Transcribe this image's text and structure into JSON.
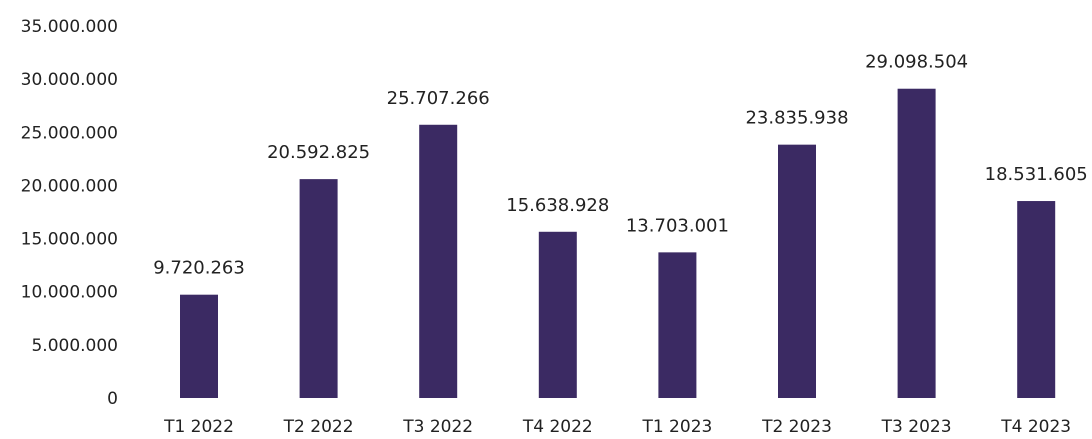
{
  "chart_data": {
    "type": "bar",
    "title": "",
    "xlabel": "",
    "ylabel": "",
    "categories": [
      "T1 2022",
      "T2 2022",
      "T3 2022",
      "T4 2022",
      "T1 2023",
      "T2 2023",
      "T3 2023",
      "T4 2023"
    ],
    "values": [
      9720263,
      20592825,
      25707266,
      15638928,
      13703001,
      23835938,
      29098504,
      18531605
    ],
    "value_labels": [
      "9.720.263",
      "20.592.825",
      "25.707.266",
      "15.638.928",
      "13.703.001",
      "23.835.938",
      "29.098.504",
      "18.531.605"
    ],
    "ylim": [
      0,
      35000000
    ],
    "y_ticks": [
      0,
      5000000,
      10000000,
      15000000,
      20000000,
      25000000,
      30000000,
      35000000
    ],
    "y_tick_labels": [
      "0",
      "5.000.000",
      "10.000.000",
      "15.000.000",
      "20.000.000",
      "25.000.000",
      "30.000.000",
      "35.000.000"
    ],
    "grid": false,
    "legend": "none",
    "colors": {
      "bar": "#3b2a63"
    }
  }
}
